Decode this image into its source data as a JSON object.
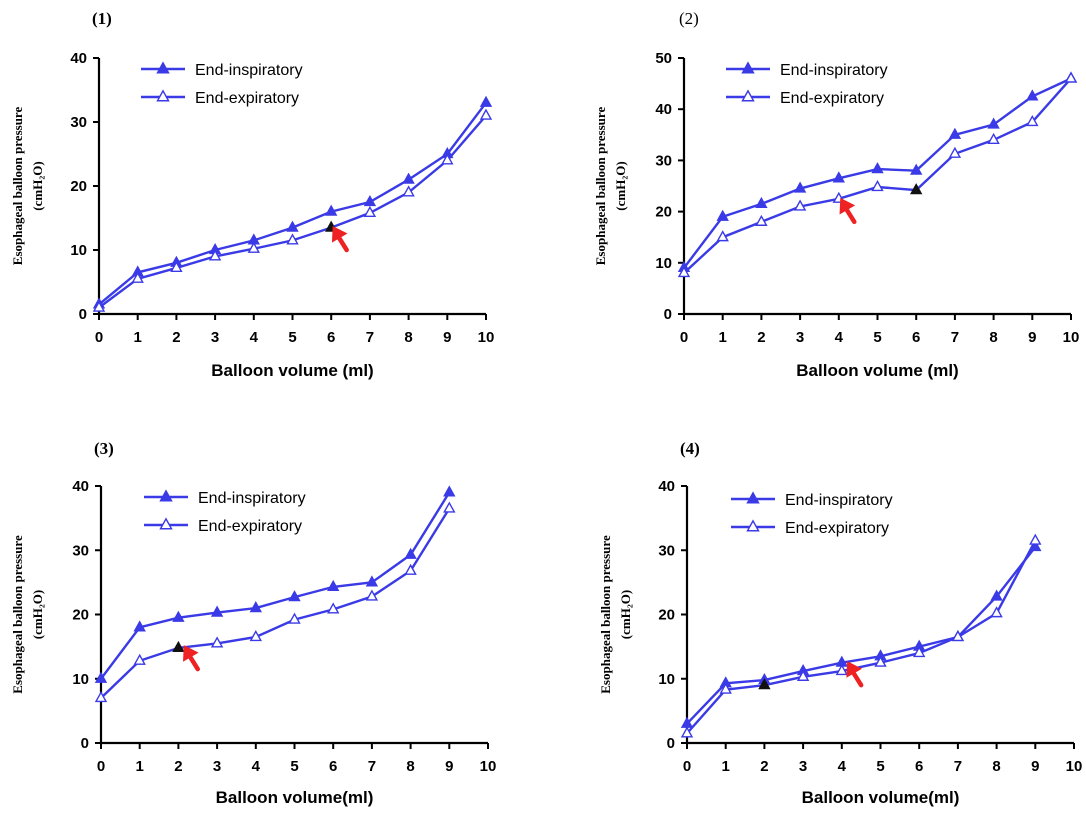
{
  "colors": {
    "series": "#3a3ae6",
    "marker_fill": "#3a3ae6",
    "highlight_marker": "#111111",
    "arrow": "#ee2222"
  },
  "chart_data": [
    {
      "panel": "(1)",
      "type": "line",
      "xlabel": "Balloon  volume (ml)",
      "ylabel": "Esophageal balloon pressure",
      "ylabel_unit": "(cmH₂O)",
      "xlim": [
        0,
        10
      ],
      "ylim": [
        0,
        40
      ],
      "xticks": [
        0,
        1,
        2,
        3,
        4,
        5,
        6,
        7,
        8,
        9,
        10
      ],
      "yticks": [
        0,
        10,
        20,
        30,
        40
      ],
      "grid": false,
      "legend": "top-left",
      "x": [
        0,
        1,
        2,
        3,
        4,
        5,
        6,
        7,
        8,
        9,
        10
      ],
      "series": [
        {
          "name": "End-inspiratory",
          "marker": "filled-triangle",
          "values": [
            1.5,
            6.5,
            8,
            10,
            11.5,
            13.5,
            16,
            17.5,
            21,
            25,
            33
          ]
        },
        {
          "name": "End-expiratory",
          "marker": "open-triangle",
          "values": [
            1,
            5.5,
            7.2,
            9,
            10.2,
            11.5,
            13.5,
            15.8,
            19,
            24,
            31
          ]
        }
      ],
      "highlight": {
        "series": 1,
        "x": 6
      },
      "arrow_at": {
        "x": 6.4,
        "y": 10
      }
    },
    {
      "panel": "(2)",
      "type": "line",
      "xlabel": "Balloon  volume (ml)",
      "ylabel": "Esophageal balloon pressure",
      "ylabel_unit": "(cmH₂O)",
      "xlim": [
        0,
        10
      ],
      "ylim": [
        0,
        50
      ],
      "xticks": [
        0,
        1,
        2,
        3,
        4,
        5,
        6,
        7,
        8,
        9,
        10
      ],
      "yticks": [
        0,
        10,
        20,
        30,
        40,
        50
      ],
      "grid": false,
      "legend": "top-left",
      "x": [
        0,
        1,
        2,
        3,
        4,
        5,
        6,
        7,
        8,
        9,
        10
      ],
      "series": [
        {
          "name": "End-inspiratory",
          "marker": "filled-triangle",
          "values": [
            9,
            19,
            21.5,
            24.5,
            26.5,
            28.3,
            28,
            35,
            37,
            42.5,
            46
          ]
        },
        {
          "name": "End-expiratory",
          "marker": "open-triangle",
          "values": [
            8,
            15,
            18,
            21,
            22.5,
            24.8,
            24.2,
            31.3,
            34,
            37.5,
            46
          ]
        }
      ],
      "highlight": {
        "series": 1,
        "x": 6
      },
      "arrow_at": {
        "x": 4.4,
        "y": 18
      }
    },
    {
      "panel": "(3)",
      "type": "line",
      "xlabel": "Balloon  volume(ml)",
      "ylabel": "Esophageal balloon pressure",
      "ylabel_unit": "(cmH₂O)",
      "xlim": [
        0,
        10
      ],
      "ylim": [
        0,
        40
      ],
      "xticks": [
        0,
        1,
        2,
        3,
        4,
        5,
        6,
        7,
        8,
        9,
        10
      ],
      "yticks": [
        0,
        10,
        20,
        30,
        40
      ],
      "grid": false,
      "legend": "top-left",
      "x": [
        0,
        1,
        2,
        3,
        4,
        5,
        6,
        7,
        8,
        9
      ],
      "series": [
        {
          "name": "End-inspiratory",
          "marker": "filled-triangle",
          "values": [
            10,
            18,
            19.5,
            20.3,
            21,
            22.7,
            24.3,
            25,
            29.3,
            39
          ]
        },
        {
          "name": "End-expiratory",
          "marker": "open-triangle",
          "values": [
            7,
            12.8,
            14.8,
            15.5,
            16.5,
            19.2,
            20.8,
            22.8,
            26.8,
            36.5
          ]
        }
      ],
      "highlight": {
        "series": 1,
        "x": 2
      },
      "arrow_at": {
        "x": 2.5,
        "y": 11.5
      }
    },
    {
      "panel": "(4)",
      "type": "line",
      "xlabel": "Balloon  volume(ml)",
      "ylabel": "Esophageal balloon pressure",
      "ylabel_unit": "(cmH₂O)",
      "xlim": [
        0,
        10
      ],
      "ylim": [
        0,
        40
      ],
      "xticks": [
        0,
        1,
        2,
        3,
        4,
        5,
        6,
        7,
        8,
        9,
        10
      ],
      "yticks": [
        0,
        10,
        20,
        30,
        40
      ],
      "grid": false,
      "legend": "top-left",
      "x": [
        0,
        1,
        2,
        3,
        4,
        5,
        6,
        7,
        8,
        9
      ],
      "series": [
        {
          "name": "End-inspiratory",
          "marker": "filled-triangle",
          "values": [
            3,
            9.3,
            9.8,
            11.2,
            12.5,
            13.5,
            15,
            16.5,
            22.8,
            30.5
          ]
        },
        {
          "name": "End-expiratory",
          "marker": "open-triangle",
          "values": [
            1.5,
            8.3,
            9,
            10.3,
            11.2,
            12.5,
            14,
            16.5,
            20.2,
            31.5
          ]
        }
      ],
      "highlight": {
        "series": 1,
        "x": 2
      },
      "arrow_at": {
        "x": 4.5,
        "y": 9
      }
    }
  ]
}
